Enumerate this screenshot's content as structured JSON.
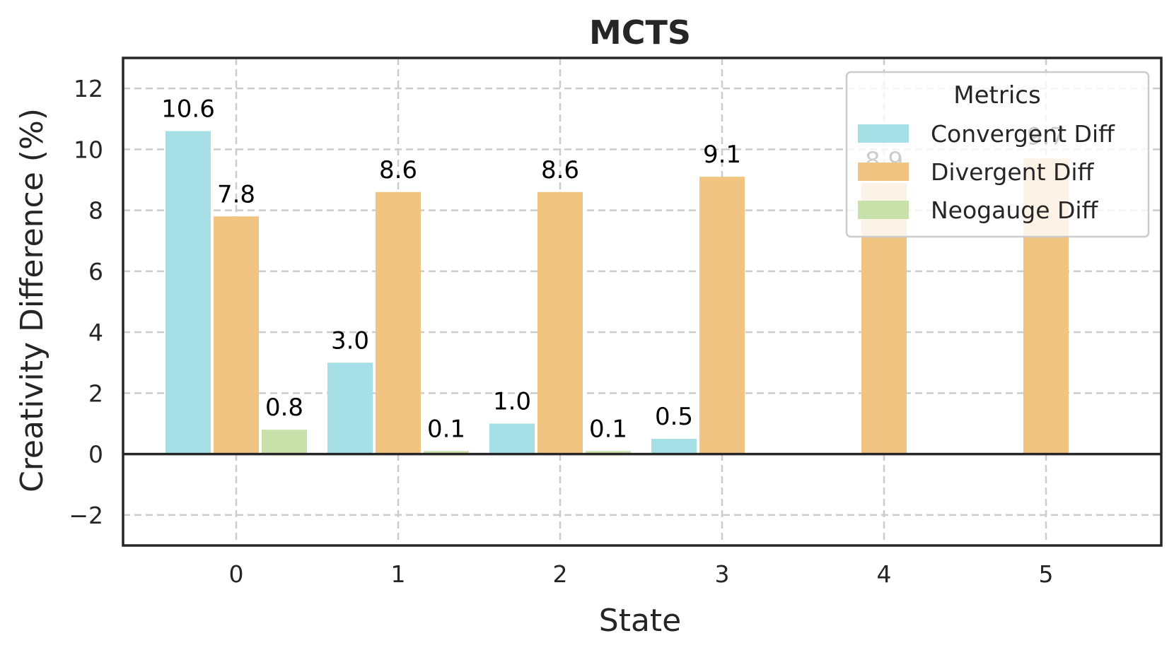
{
  "chart_data": {
    "type": "bar",
    "title": "MCTS",
    "xlabel": "State",
    "ylabel": "Creativity Difference (%)",
    "categories": [
      "0",
      "1",
      "2",
      "3",
      "4",
      "5"
    ],
    "ylim": [
      -3,
      13
    ],
    "yticks": [
      -2,
      0,
      2,
      4,
      6,
      8,
      10,
      12
    ],
    "ytick_labels": [
      "−2",
      "0",
      "2",
      "4",
      "6",
      "8",
      "10",
      "12"
    ],
    "grid": true,
    "legend": {
      "title": "Metrics",
      "placement": "top-right"
    },
    "series": [
      {
        "name": "Convergent Diff",
        "color": "#a6dfe6",
        "values": [
          10.6,
          3.0,
          1.0,
          0.5,
          0,
          0
        ],
        "labels": [
          "10.6",
          "3.0",
          "1.0",
          "0.5",
          "",
          ""
        ]
      },
      {
        "name": "Divergent Diff",
        "color": "#f1c482",
        "values": [
          7.8,
          8.6,
          8.6,
          9.1,
          8.9,
          9.7
        ],
        "labels": [
          "7.8",
          "8.6",
          "8.6",
          "9.1",
          "8.9",
          "9.7"
        ]
      },
      {
        "name": "Neogauge Diff",
        "color": "#c8e0aa",
        "values": [
          0.8,
          0.1,
          0.1,
          0,
          0,
          0
        ],
        "labels": [
          "0.8",
          "0.1",
          "0.1",
          "",
          "",
          ""
        ]
      }
    ]
  }
}
